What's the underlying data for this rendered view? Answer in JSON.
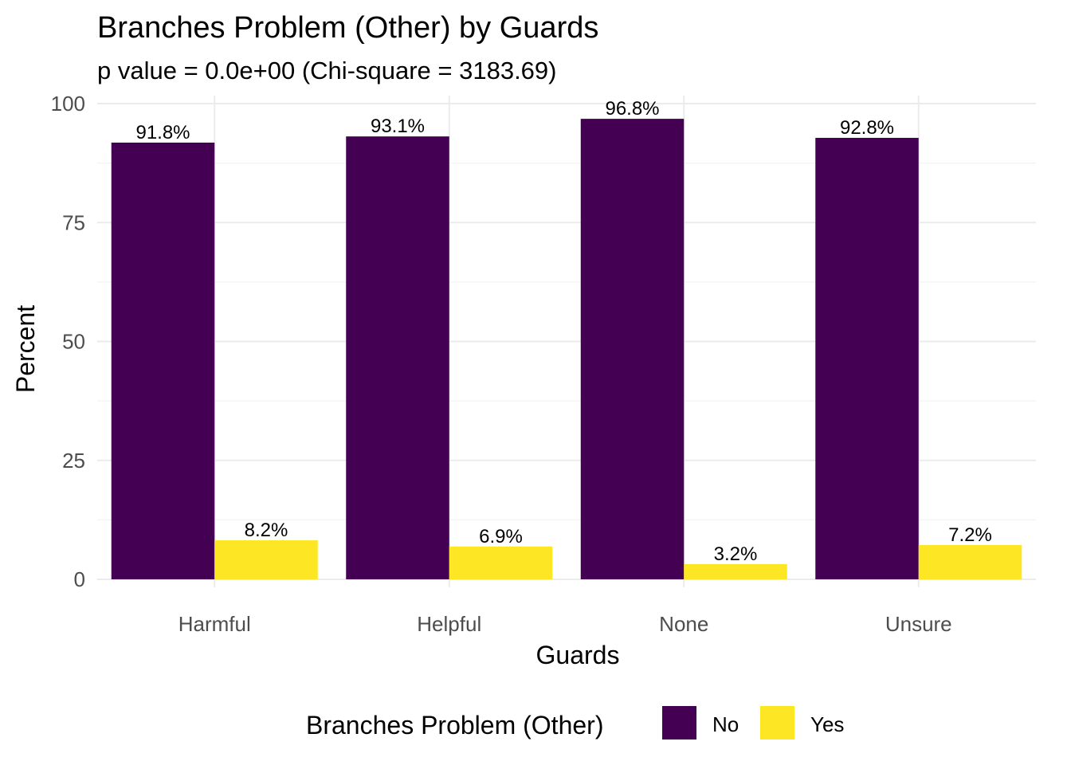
{
  "chart_data": {
    "type": "bar",
    "title": "Branches Problem (Other) by Guards",
    "subtitle": "p value = 0.0e+00 (Chi-square = 3183.69)",
    "xlabel": "Guards",
    "ylabel": "Percent",
    "categories": [
      "Harmful",
      "Helpful",
      "None",
      "Unsure"
    ],
    "series": [
      {
        "name": "No",
        "color": "#440154",
        "values": [
          91.8,
          93.1,
          96.8,
          92.8
        ],
        "labels": [
          "91.8%",
          "93.1%",
          "96.8%",
          "92.8%"
        ]
      },
      {
        "name": "Yes",
        "color": "#FDE725",
        "values": [
          8.2,
          6.9,
          3.2,
          7.2
        ],
        "labels": [
          "8.2%",
          "6.9%",
          "3.2%",
          "7.2%"
        ]
      }
    ],
    "ylim": [
      0,
      100
    ],
    "yticks": [
      0,
      25,
      50,
      75,
      100
    ],
    "ytick_labels": [
      "0",
      "25",
      "50",
      "75",
      "100"
    ],
    "grid": true,
    "legend": {
      "title": "Branches Problem (Other)",
      "position": "bottom"
    }
  }
}
